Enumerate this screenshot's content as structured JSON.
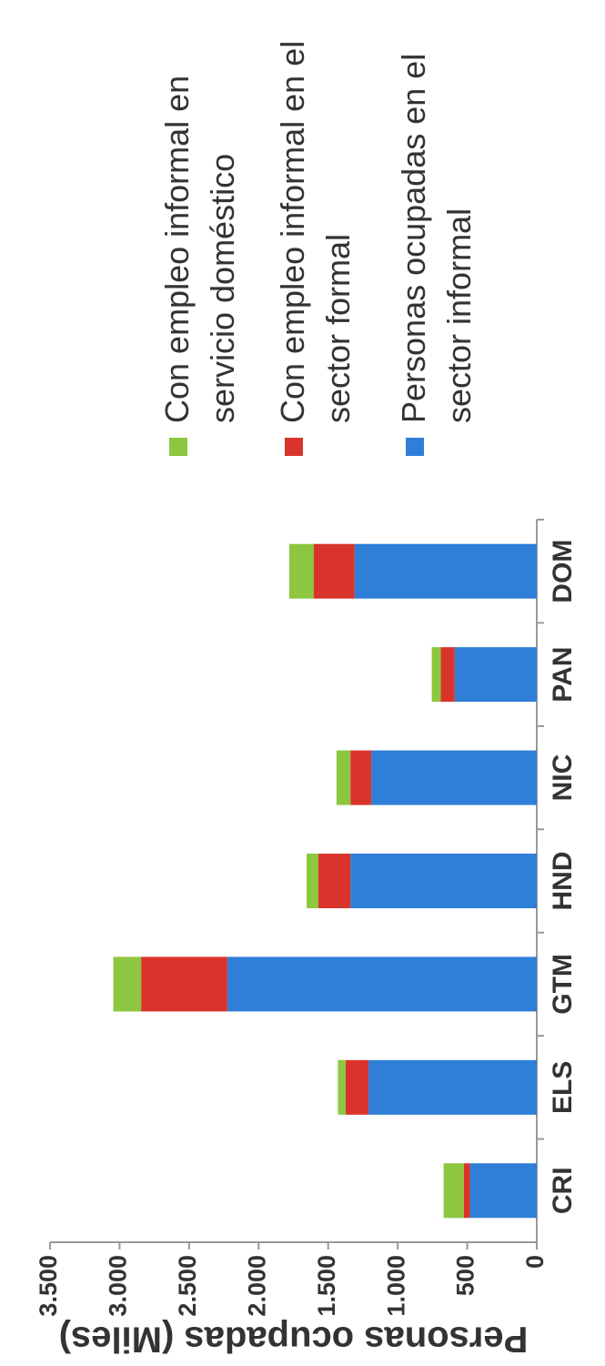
{
  "chart_data": {
    "type": "bar",
    "stacked": true,
    "y_label": "Personas ocupadas (Miles)",
    "categories": [
      "CRI",
      "ELS",
      "GTM",
      "HND",
      "NIC",
      "PAN",
      "DOM"
    ],
    "series": [
      {
        "name": "Personas ocupadas en el sector informal",
        "color": "#2f7ed8",
        "values": [
          480,
          1210,
          2225,
          1340,
          1190,
          590,
          1310
        ]
      },
      {
        "name": "Con empleo informal en el sector formal",
        "color": "#d9342b",
        "values": [
          45,
          165,
          620,
          230,
          150,
          100,
          295
        ]
      },
      {
        "name": "Con empleo informal en servicio doméstico",
        "color": "#8dc63f",
        "values": [
          145,
          55,
          200,
          85,
          100,
          65,
          175
        ]
      }
    ],
    "ylim": [
      0,
      3500
    ],
    "yticks": [
      0,
      500,
      {
        "value": 1000,
        "label": "1.000"
      },
      {
        "value": 1500,
        "label": "1.500"
      },
      {
        "value": 2000,
        "label": "2.000"
      },
      {
        "value": 2500,
        "label": "2.500"
      },
      {
        "value": 3000,
        "label": "3.000"
      },
      {
        "value": 3500,
        "label": "3.500"
      }
    ],
    "grid": false
  }
}
